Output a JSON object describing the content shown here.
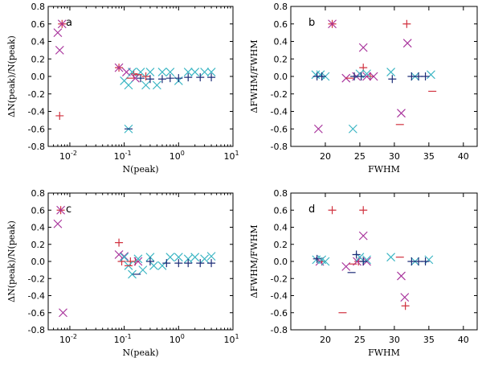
{
  "colors": {
    "plus": "#d1323f",
    "cross_magenta": "#a8339c",
    "cross_cyan": "#3cb6c4",
    "minus": "#d1323f",
    "navy": "#1c2c77",
    "cyan_dash": "#3cb6c4"
  },
  "chart_data": [
    {
      "type": "scatter",
      "panel": "a",
      "xscale": "log",
      "xlim": [
        0.004,
        10
      ],
      "ylim": [
        -0.8,
        0.8
      ],
      "xlabel": "N(peak)",
      "ylabel": "ΔN(peak)/N(peak)",
      "xticks": [
        {
          "v": 0.01,
          "base": "10",
          "exp": "-2"
        },
        {
          "v": 0.1,
          "base": "10",
          "exp": "-1"
        },
        {
          "v": 1,
          "base": "10",
          "exp": "0"
        },
        {
          "v": 10,
          "base": "10",
          "exp": "1"
        }
      ],
      "yticks": [
        "0.8",
        "0.6",
        "0.4",
        "0.2",
        "0.0",
        "-0.2",
        "-0.4",
        "-0.6",
        "-0.8"
      ],
      "series": [
        {
          "name": "plus",
          "marker": "plus",
          "color": "#d1323f",
          "points": [
            [
              0.0065,
              -0.45
            ],
            [
              0.0072,
              0.6
            ],
            [
              0.08,
              0.1
            ],
            [
              0.15,
              0.03
            ],
            [
              0.25,
              0.0
            ]
          ]
        },
        {
          "name": "magenta cross",
          "marker": "x",
          "color": "#a8339c",
          "points": [
            [
              0.006,
              0.5
            ],
            [
              0.0065,
              0.3
            ],
            [
              0.0072,
              0.6
            ],
            [
              0.08,
              0.1
            ],
            [
              0.11,
              0.05
            ],
            [
              0.16,
              -0.02
            ]
          ]
        },
        {
          "name": "cyan cross",
          "marker": "x",
          "color": "#3cb6c4",
          "points": [
            [
              0.1,
              -0.05
            ],
            [
              0.12,
              -0.1
            ],
            [
              0.14,
              0.05
            ],
            [
              0.2,
              0.05
            ],
            [
              0.25,
              -0.1
            ],
            [
              0.3,
              0.05
            ],
            [
              0.4,
              -0.1
            ],
            [
              0.5,
              0.05
            ],
            [
              0.7,
              0.05
            ],
            [
              1.0,
              -0.05
            ],
            [
              1.5,
              0.05
            ],
            [
              2.0,
              0.05
            ],
            [
              3.0,
              0.05
            ],
            [
              4.0,
              0.05
            ],
            [
              0.12,
              -0.6
            ]
          ]
        },
        {
          "name": "navy plus",
          "marker": "plus",
          "color": "#1c2c77",
          "points": [
            [
              0.2,
              -0.02
            ],
            [
              0.3,
              -0.03
            ],
            [
              0.5,
              -0.03
            ],
            [
              0.7,
              -0.02
            ],
            [
              1.0,
              -0.02
            ],
            [
              1.5,
              -0.01
            ],
            [
              2.5,
              -0.01
            ],
            [
              4.0,
              -0.01
            ]
          ]
        },
        {
          "name": "minus",
          "marker": "minus",
          "color": "#d1323f",
          "points": [
            [
              0.13,
              -0.02
            ],
            [
              0.18,
              0.02
            ]
          ]
        },
        {
          "name": "navy dash",
          "marker": "minus",
          "color": "#1c2c77",
          "points": [
            [
              0.12,
              -0.6
            ]
          ]
        }
      ]
    },
    {
      "type": "scatter",
      "panel": "b",
      "xscale": "linear",
      "xlim": [
        15,
        42
      ],
      "ylim": [
        -0.8,
        0.8
      ],
      "xlabel": "FWHM",
      "ylabel": "ΔFWHM/FWHM",
      "xticks": [
        {
          "v": 20,
          "label": "20"
        },
        {
          "v": 25,
          "label": "25"
        },
        {
          "v": 30,
          "label": "30"
        },
        {
          "v": 35,
          "label": "35"
        },
        {
          "v": 40,
          "label": "40"
        }
      ],
      "yticks": [
        "0.8",
        "0.6",
        "0.4",
        "0.2",
        "0.0",
        "-0.2",
        "-0.4",
        "-0.6",
        "-0.8"
      ],
      "series": [
        {
          "name": "plus",
          "marker": "plus",
          "color": "#d1323f",
          "points": [
            [
              21,
              0.6
            ],
            [
              25.5,
              0.1
            ],
            [
              31.8,
              0.6
            ],
            [
              26.5,
              0.0
            ]
          ]
        },
        {
          "name": "magenta cross",
          "marker": "x",
          "color": "#a8339c",
          "points": [
            [
              19,
              -0.6
            ],
            [
              21,
              0.6
            ],
            [
              25.5,
              0.33
            ],
            [
              31,
              -0.42
            ],
            [
              31.9,
              0.38
            ],
            [
              23,
              -0.02
            ],
            [
              24.5,
              0.0
            ],
            [
              26,
              0.0
            ],
            [
              27,
              0.0
            ]
          ]
        },
        {
          "name": "cyan cross",
          "marker": "x",
          "color": "#3cb6c4",
          "points": [
            [
              18.6,
              0.02
            ],
            [
              19.3,
              0.02
            ],
            [
              20,
              0.0
            ],
            [
              24,
              -0.6
            ],
            [
              25,
              0.03
            ],
            [
              26,
              0.03
            ],
            [
              29.5,
              0.05
            ],
            [
              33,
              0.0
            ],
            [
              35.3,
              0.02
            ]
          ]
        },
        {
          "name": "navy plus",
          "marker": "plus",
          "color": "#1c2c77",
          "points": [
            [
              18.8,
              0.0
            ],
            [
              19.5,
              0.0
            ],
            [
              24.2,
              0.0
            ],
            [
              25.2,
              0.0
            ],
            [
              29.7,
              -0.03
            ],
            [
              32.5,
              0.0
            ],
            [
              33.5,
              0.0
            ],
            [
              34.5,
              0.0
            ]
          ]
        },
        {
          "name": "minus",
          "marker": "minus",
          "color": "#d1323f",
          "points": [
            [
              30.8,
              -0.55
            ],
            [
              35.5,
              -0.17
            ],
            [
              23.5,
              -0.02
            ]
          ]
        }
      ]
    },
    {
      "type": "scatter",
      "panel": "c",
      "xscale": "log",
      "xlim": [
        0.004,
        10
      ],
      "ylim": [
        -0.8,
        0.8
      ],
      "xlabel": "N(peak)",
      "ylabel": "ΔN(peak)/N(peak)",
      "xticks": [
        {
          "v": 0.01,
          "base": "10",
          "exp": "-2"
        },
        {
          "v": 0.1,
          "base": "10",
          "exp": "-1"
        },
        {
          "v": 1,
          "base": "10",
          "exp": "0"
        },
        {
          "v": 10,
          "base": "10",
          "exp": "1"
        }
      ],
      "yticks": [
        "0.8",
        "0.6",
        "0.4",
        "0.2",
        "0.0",
        "-0.2",
        "-0.4",
        "-0.6",
        "-0.8"
      ],
      "series": [
        {
          "name": "plus",
          "marker": "plus",
          "color": "#d1323f",
          "points": [
            [
              0.0068,
              0.6
            ],
            [
              0.08,
              0.22
            ],
            [
              0.09,
              0.0
            ],
            [
              0.13,
              0.0
            ],
            [
              0.16,
              0.0
            ]
          ]
        },
        {
          "name": "magenta cross",
          "marker": "x",
          "color": "#a8339c",
          "points": [
            [
              0.006,
              0.44
            ],
            [
              0.0068,
              0.6
            ],
            [
              0.0075,
              -0.6
            ],
            [
              0.08,
              0.08
            ],
            [
              0.1,
              0.06
            ],
            [
              0.18,
              0.0
            ]
          ]
        },
        {
          "name": "cyan cross",
          "marker": "x",
          "color": "#3cb6c4",
          "points": [
            [
              0.1,
              0.05
            ],
            [
              0.12,
              -0.05
            ],
            [
              0.14,
              -0.15
            ],
            [
              0.18,
              0.03
            ],
            [
              0.22,
              -0.1
            ],
            [
              0.3,
              0.05
            ],
            [
              0.35,
              -0.05
            ],
            [
              0.5,
              -0.05
            ],
            [
              0.7,
              0.05
            ],
            [
              1.0,
              0.05
            ],
            [
              1.5,
              0.03
            ],
            [
              2.0,
              0.05
            ],
            [
              3.0,
              0.03
            ],
            [
              4.0,
              0.06
            ]
          ]
        },
        {
          "name": "navy plus",
          "marker": "plus",
          "color": "#1c2c77",
          "points": [
            [
              0.3,
              0.0
            ],
            [
              0.6,
              -0.02
            ],
            [
              1.0,
              -0.02
            ],
            [
              1.5,
              -0.02
            ],
            [
              2.5,
              -0.02
            ],
            [
              4.0,
              -0.02
            ]
          ]
        },
        {
          "name": "navy dash",
          "marker": "minus",
          "color": "#1c2c77",
          "points": [
            [
              0.17,
              -0.15
            ]
          ]
        },
        {
          "name": "minus",
          "marker": "minus",
          "color": "#d1323f",
          "points": [
            [
              0.12,
              -0.05
            ]
          ]
        }
      ]
    },
    {
      "type": "scatter",
      "panel": "d",
      "xscale": "linear",
      "xlim": [
        15,
        42
      ],
      "ylim": [
        -0.8,
        0.8
      ],
      "xlabel": "FWHM",
      "ylabel": "ΔFWHM/FWHM",
      "xticks": [
        {
          "v": 20,
          "label": "20"
        },
        {
          "v": 25,
          "label": "25"
        },
        {
          "v": 30,
          "label": "30"
        },
        {
          "v": 35,
          "label": "35"
        },
        {
          "v": 40,
          "label": "40"
        }
      ],
      "yticks": [
        "0.8",
        "0.6",
        "0.4",
        "0.2",
        "0.0",
        "-0.2",
        "-0.4",
        "-0.6",
        "-0.8"
      ],
      "series": [
        {
          "name": "plus",
          "marker": "plus",
          "color": "#d1323f",
          "points": [
            [
              21,
              0.6
            ],
            [
              25.5,
              0.6
            ],
            [
              31.6,
              -0.52
            ],
            [
              19.5,
              0.0
            ],
            [
              24.8,
              0.0
            ]
          ]
        },
        {
          "name": "magenta cross",
          "marker": "x",
          "color": "#a8339c",
          "points": [
            [
              25.5,
              0.3
            ],
            [
              31,
              -0.17
            ],
            [
              31.5,
              -0.42
            ],
            [
              23,
              -0.06
            ],
            [
              19.2,
              0.0
            ],
            [
              24.6,
              0.0
            ],
            [
              26,
              0.0
            ]
          ]
        },
        {
          "name": "cyan cross",
          "marker": "x",
          "color": "#3cb6c4",
          "points": [
            [
              18.7,
              0.02
            ],
            [
              19.5,
              0.02
            ],
            [
              20,
              0.0
            ],
            [
              25,
              0.05
            ],
            [
              26,
              0.02
            ],
            [
              29.5,
              0.05
            ],
            [
              33,
              0.0
            ],
            [
              35,
              0.02
            ]
          ]
        },
        {
          "name": "navy plus",
          "marker": "plus",
          "color": "#1c2c77",
          "points": [
            [
              18.8,
              0.03
            ],
            [
              24.5,
              0.08
            ],
            [
              25.5,
              0.0
            ],
            [
              32.5,
              0.0
            ],
            [
              33.5,
              0.0
            ],
            [
              34.5,
              0.0
            ]
          ]
        },
        {
          "name": "minus",
          "marker": "minus",
          "color": "#d1323f",
          "points": [
            [
              22.5,
              -0.6
            ],
            [
              30.8,
              0.05
            ],
            [
              24,
              -0.03
            ]
          ]
        },
        {
          "name": "navy dash",
          "marker": "minus",
          "color": "#1c2c77",
          "points": [
            [
              23.8,
              -0.13
            ]
          ]
        }
      ]
    }
  ]
}
